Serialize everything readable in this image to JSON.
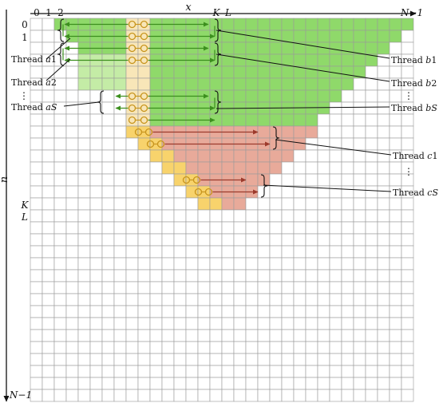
{
  "axes": {
    "x_label": "x",
    "n_label": "n",
    "x_ticks": [
      "0",
      "1",
      "2",
      "K",
      "L",
      "N−1"
    ],
    "n_ticks": [
      "0",
      "1",
      "K",
      "L",
      "N−1"
    ]
  },
  "threads_left": {
    "a1": {
      "word": "Thread",
      "var": "a",
      "sub": "1"
    },
    "a2": {
      "word": "Thread",
      "var": "a",
      "sub": "2"
    },
    "aS": {
      "word": "Thread",
      "var": "a",
      "sub": "S"
    }
  },
  "threads_right": {
    "b1": {
      "word": "Thread",
      "var": "b",
      "sub": "1"
    },
    "b2": {
      "word": "Thread",
      "var": "b",
      "sub": "2"
    },
    "bS": {
      "word": "Thread",
      "var": "b",
      "sub": "S"
    },
    "c1": {
      "word": "Thread",
      "var": "c",
      "sub": "1"
    },
    "cS": {
      "word": "Thread",
      "var": "c",
      "sub": "S"
    }
  },
  "ellipsis": "⋮",
  "colors": {
    "green": "#8fd96a",
    "green_light": "#c4eca6",
    "cream": "#f8e6b8",
    "salmon": "#e8aa9a",
    "yellow": "#f8d36c",
    "grid": "#9a9a9a",
    "green_arrow": "#3c8f1e",
    "red_arrow": "#9c3a2c",
    "circle": "#c8951e"
  }
}
